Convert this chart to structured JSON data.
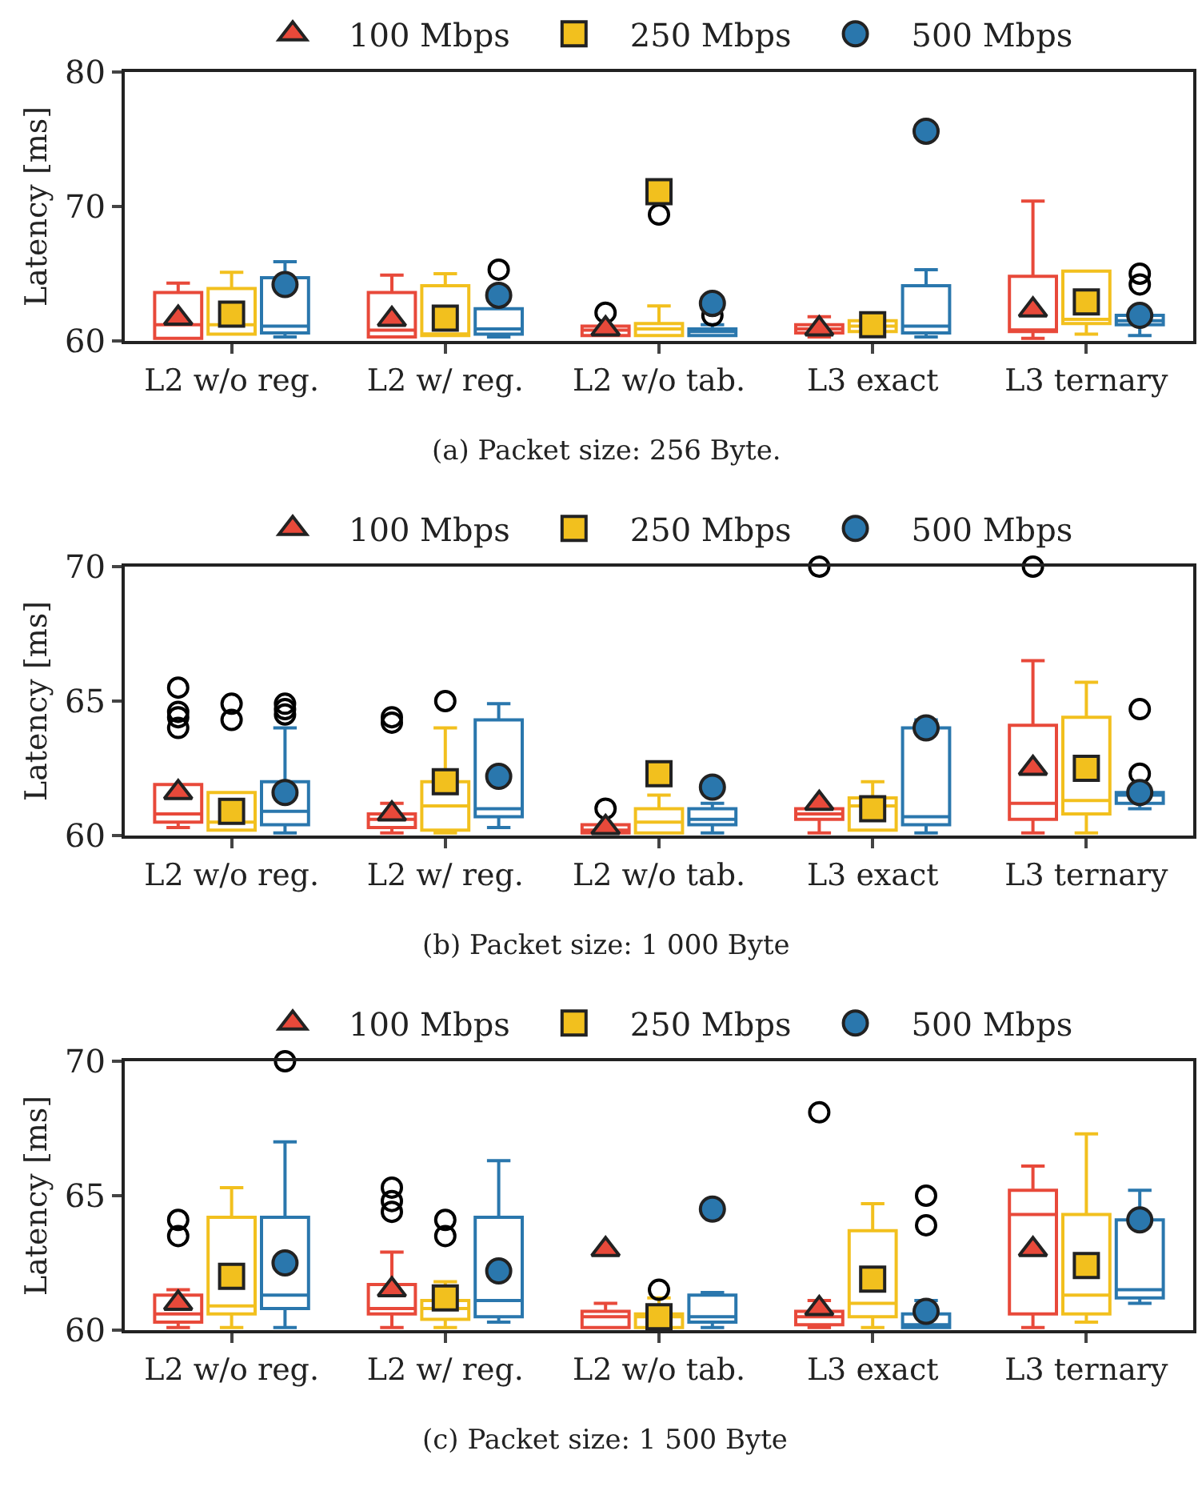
{
  "chart_data": [
    {
      "type": "box",
      "ylabel": "Latency [ms]",
      "ylim": [
        60,
        80
      ],
      "yticks": [
        60,
        70,
        80
      ],
      "grid": false,
      "legend": "top",
      "annotations": [
        "(a) Packet size: 256 Byte."
      ],
      "categories": [
        "L2 w/o reg.",
        "L2 w/ reg.",
        "L2 w/o tab.",
        "L3 exact",
        "L3 ternary"
      ],
      "series": [
        {
          "name": "100 Mbps",
          "color": "#e8493a",
          "marker": "triangle",
          "boxes": [
            {
              "low": 60.2,
              "q1": 60.2,
              "median": 61.2,
              "q3": 63.6,
              "high": 64.3,
              "mean": 61.7
            },
            {
              "low": 60.3,
              "q1": 60.3,
              "median": 60.8,
              "q3": 63.6,
              "high": 64.9,
              "mean": 61.6
            },
            {
              "low": 60.4,
              "q1": 60.4,
              "median": 60.8,
              "q3": 61.1,
              "high": 61.1,
              "mean": 60.9,
              "outliers": [
                62.1
              ]
            },
            {
              "low": 60.3,
              "q1": 60.6,
              "median": 60.9,
              "q3": 61.2,
              "high": 61.8,
              "mean": 60.9
            },
            {
              "low": 60.2,
              "q1": 60.7,
              "median": 60.8,
              "q3": 64.8,
              "high": 70.4,
              "mean": 62.3
            }
          ]
        },
        {
          "name": "250 Mbps",
          "color": "#f2c01e",
          "marker": "square",
          "boxes": [
            {
              "low": 60.5,
              "q1": 60.5,
              "median": 61.2,
              "q3": 63.9,
              "high": 65.1,
              "mean": 62.0
            },
            {
              "low": 60.4,
              "q1": 60.4,
              "median": 60.5,
              "q3": 64.1,
              "high": 65.0,
              "mean": 61.7
            },
            {
              "low": 60.4,
              "q1": 60.4,
              "median": 60.9,
              "q3": 61.3,
              "high": 62.6,
              "mean": 71.1,
              "outliers": [
                69.4
              ]
            },
            {
              "low": 60.7,
              "q1": 60.7,
              "median": 61.1,
              "q3": 61.5,
              "high": 61.5,
              "mean": 61.2
            },
            {
              "low": 60.5,
              "q1": 61.3,
              "median": 61.6,
              "q3": 65.2,
              "high": 65.2,
              "mean": 62.9
            }
          ]
        },
        {
          "name": "500 Mbps",
          "color": "#2a77ad",
          "marker": "circle",
          "boxes": [
            {
              "low": 60.3,
              "q1": 60.6,
              "median": 61.1,
              "q3": 64.7,
              "high": 65.9,
              "mean": 64.2
            },
            {
              "low": 60.3,
              "q1": 60.5,
              "median": 60.9,
              "q3": 62.4,
              "high": 63.1,
              "mean": 63.4,
              "outliers": [
                65.3
              ]
            },
            {
              "low": 60.4,
              "q1": 60.4,
              "median": 60.7,
              "q3": 60.9,
              "high": 61.2,
              "mean": 62.8,
              "outliers": [
                61.9,
                62.6
              ]
            },
            {
              "low": 60.3,
              "q1": 60.6,
              "median": 61.1,
              "q3": 64.1,
              "high": 65.3,
              "mean": 75.6
            },
            {
              "low": 60.4,
              "q1": 61.2,
              "median": 61.5,
              "q3": 61.9,
              "high": 61.9,
              "mean": 61.9,
              "outliers": [
                64.2,
                65.0
              ]
            }
          ]
        }
      ]
    },
    {
      "type": "box",
      "ylabel": "Latency [ms]",
      "ylim": [
        60,
        70
      ],
      "yticks": [
        60,
        65,
        70
      ],
      "grid": false,
      "legend": "top",
      "annotations": [
        "(b) Packet size: 1 000 Byte"
      ],
      "categories": [
        "L2 w/o reg.",
        "L2 w/ reg.",
        "L2 w/o tab.",
        "L3 exact",
        "L3 ternary"
      ],
      "series": [
        {
          "name": "100 Mbps",
          "color": "#e8493a",
          "marker": "triangle",
          "boxes": [
            {
              "low": 60.3,
              "q1": 60.5,
              "median": 60.8,
              "q3": 61.9,
              "high": 61.9,
              "mean": 61.6,
              "outliers": [
                64.0,
                64.4,
                64.6,
                65.5
              ]
            },
            {
              "low": 60.1,
              "q1": 60.3,
              "median": 60.6,
              "q3": 60.8,
              "high": 61.2,
              "mean": 60.8,
              "outliers": [
                64.2,
                64.4
              ]
            },
            {
              "low": 60.1,
              "q1": 60.1,
              "median": 60.2,
              "q3": 60.4,
              "high": 60.4,
              "mean": 60.3,
              "outliers": [
                61.0
              ]
            },
            {
              "low": 60.1,
              "q1": 60.6,
              "median": 60.8,
              "q3": 61.0,
              "high": 61.0,
              "mean": 61.2,
              "outliers": [
                70
              ]
            },
            {
              "low": 60.1,
              "q1": 60.6,
              "median": 61.2,
              "q3": 64.1,
              "high": 66.5,
              "mean": 62.5,
              "outliers": [
                70
              ]
            }
          ]
        },
        {
          "name": "250 Mbps",
          "color": "#f2c01e",
          "marker": "square",
          "boxes": [
            {
              "low": 60.2,
              "q1": 60.2,
              "median": 60.5,
              "q3": 61.6,
              "high": 61.6,
              "mean": 60.9,
              "outliers": [
                64.3,
                64.9
              ]
            },
            {
              "low": 60.1,
              "q1": 60.2,
              "median": 61.1,
              "q3": 62.0,
              "high": 64.0,
              "mean": 62.0,
              "outliers": [
                65.0
              ]
            },
            {
              "low": 60.1,
              "q1": 60.1,
              "median": 60.5,
              "q3": 61.0,
              "high": 61.5,
              "mean": 62.3
            },
            {
              "low": 60.2,
              "q1": 60.2,
              "median": 61.1,
              "q3": 61.4,
              "high": 62.0,
              "mean": 61.0
            },
            {
              "low": 60.1,
              "q1": 60.8,
              "median": 61.3,
              "q3": 64.4,
              "high": 65.7,
              "mean": 62.5
            }
          ]
        },
        {
          "name": "500 Mbps",
          "color": "#2a77ad",
          "marker": "circle",
          "boxes": [
            {
              "low": 60.1,
              "q1": 60.4,
              "median": 60.9,
              "q3": 62.0,
              "high": 64.0,
              "mean": 61.6,
              "outliers": [
                64.5,
                64.7,
                64.9
              ]
            },
            {
              "low": 60.3,
              "q1": 60.7,
              "median": 61.0,
              "q3": 64.3,
              "high": 64.9,
              "mean": 62.2
            },
            {
              "low": 60.1,
              "q1": 60.4,
              "median": 60.6,
              "q3": 61.0,
              "high": 61.2,
              "mean": 61.8
            },
            {
              "low": 60.1,
              "q1": 60.4,
              "median": 60.7,
              "q3": 64.0,
              "high": 64.3,
              "mean": 64.0
            },
            {
              "low": 61.0,
              "q1": 61.2,
              "median": 61.5,
              "q3": 61.6,
              "high": 61.6,
              "mean": 61.6,
              "outliers": [
                62.3,
                64.7
              ]
            }
          ]
        }
      ]
    },
    {
      "type": "box",
      "ylabel": "Latency [ms]",
      "ylim": [
        60,
        70
      ],
      "yticks": [
        60,
        65,
        70
      ],
      "grid": false,
      "legend": "top",
      "annotations": [
        "(c) Packet size: 1 500 Byte"
      ],
      "categories": [
        "L2 w/o reg.",
        "L2 w/ reg.",
        "L2 w/o tab.",
        "L3 exact",
        "L3 ternary"
      ],
      "series": [
        {
          "name": "100 Mbps",
          "color": "#e8493a",
          "marker": "triangle",
          "boxes": [
            {
              "low": 60.1,
              "q1": 60.3,
              "median": 60.6,
              "q3": 61.3,
              "high": 61.5,
              "mean": 61.0,
              "outliers": [
                63.5,
                64.1
              ]
            },
            {
              "low": 60.1,
              "q1": 60.6,
              "median": 60.8,
              "q3": 61.7,
              "high": 62.9,
              "mean": 61.5,
              "outliers": [
                64.4,
                64.8,
                65.3
              ]
            },
            {
              "low": 60.1,
              "q1": 60.1,
              "median": 60.5,
              "q3": 60.7,
              "high": 61.0,
              "mean": 63.0
            },
            {
              "low": 60.1,
              "q1": 60.2,
              "median": 60.5,
              "q3": 60.7,
              "high": 61.1,
              "mean": 60.8,
              "outliers": [
                68.1
              ]
            },
            {
              "low": 60.1,
              "q1": 60.6,
              "median": 64.3,
              "q3": 65.2,
              "high": 66.1,
              "mean": 63.0
            }
          ]
        },
        {
          "name": "250 Mbps",
          "color": "#f2c01e",
          "marker": "square",
          "boxes": [
            {
              "low": 60.1,
              "q1": 60.6,
              "median": 60.9,
              "q3": 64.2,
              "high": 65.3,
              "mean": 62.0
            },
            {
              "low": 60.1,
              "q1": 60.4,
              "median": 60.8,
              "q3": 61.1,
              "high": 61.8,
              "mean": 61.2,
              "outliers": [
                63.5,
                64.1
              ]
            },
            {
              "low": 60.1,
              "q1": 60.1,
              "median": 60.5,
              "q3": 60.6,
              "high": 61.2,
              "mean": 60.5,
              "outliers": [
                61.5
              ]
            },
            {
              "low": 60.1,
              "q1": 60.5,
              "median": 61.0,
              "q3": 63.7,
              "high": 64.7,
              "mean": 61.9
            },
            {
              "low": 60.3,
              "q1": 60.6,
              "median": 61.3,
              "q3": 64.3,
              "high": 67.3,
              "mean": 62.4
            }
          ]
        },
        {
          "name": "500 Mbps",
          "color": "#2a77ad",
          "marker": "circle",
          "boxes": [
            {
              "low": 60.1,
              "q1": 60.8,
              "median": 61.3,
              "q3": 64.2,
              "high": 67.0,
              "mean": 62.5,
              "outliers": [
                70
              ]
            },
            {
              "low": 60.3,
              "q1": 60.5,
              "median": 61.1,
              "q3": 64.2,
              "high": 66.3,
              "mean": 62.2
            },
            {
              "low": 60.1,
              "q1": 60.3,
              "median": 60.5,
              "q3": 61.3,
              "high": 61.4,
              "mean": 64.5
            },
            {
              "low": 60.1,
              "q1": 60.1,
              "median": 60.2,
              "q3": 60.6,
              "high": 61.1,
              "mean": 60.7,
              "outliers": [
                63.9,
                65.0
              ]
            },
            {
              "low": 61.0,
              "q1": 61.2,
              "median": 61.5,
              "q3": 64.1,
              "high": 65.2,
              "mean": 64.1
            }
          ]
        }
      ]
    }
  ]
}
